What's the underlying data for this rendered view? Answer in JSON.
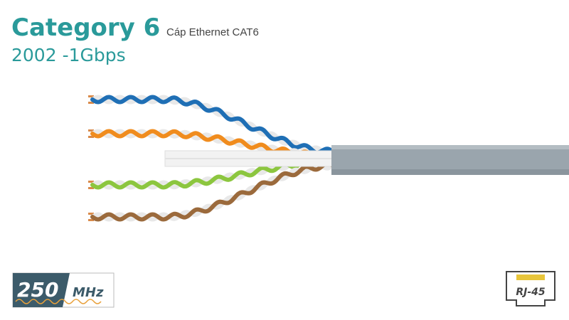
{
  "header": {
    "title": "Category 6",
    "subtitle": "Cáp Ethernet CAT6",
    "info": "2002 -1Gbps"
  },
  "badges": {
    "frequency": {
      "number": "250",
      "unit": "MHz"
    },
    "connector": "RJ-45"
  }
}
